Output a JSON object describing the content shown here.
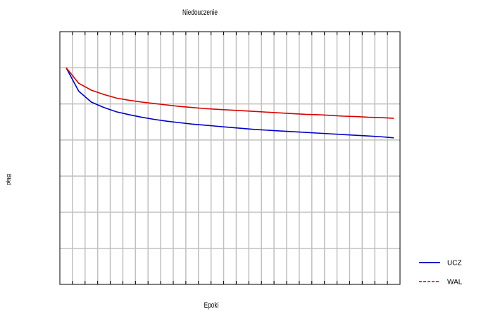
{
  "chart_data": {
    "type": "line",
    "title": "Niedouczenie",
    "x_label": "Epoki",
    "y_label": "Błąd",
    "x": [
      0.5,
      1.5,
      2.5,
      3.5,
      4.5,
      5.5,
      6.5,
      7.5,
      8.5,
      9.5,
      10.5,
      11.5,
      12.5,
      13.5,
      14.5,
      15.5,
      16.5,
      17.5,
      18.5,
      19.5,
      20.5,
      21.5,
      22.5,
      23.5,
      24.5,
      25.5,
      26.5
    ],
    "series": [
      {
        "name": "UCZ",
        "color": "#0000c8",
        "values": [
          6.0,
          5.35,
          5.05,
          4.9,
          4.78,
          4.7,
          4.63,
          4.57,
          4.52,
          4.48,
          4.44,
          4.41,
          4.38,
          4.35,
          4.32,
          4.29,
          4.27,
          4.25,
          4.23,
          4.21,
          4.19,
          4.17,
          4.15,
          4.13,
          4.11,
          4.09,
          4.06
        ]
      },
      {
        "name": "WAL",
        "color": "#d80000",
        "values": [
          6.0,
          5.57,
          5.38,
          5.26,
          5.16,
          5.1,
          5.05,
          5.01,
          4.97,
          4.93,
          4.9,
          4.87,
          4.85,
          4.83,
          4.81,
          4.79,
          4.77,
          4.75,
          4.73,
          4.71,
          4.7,
          4.68,
          4.66,
          4.65,
          4.63,
          4.62,
          4.6
        ]
      }
    ],
    "xlim": [
      0,
      27
    ],
    "ylim": [
      0,
      7
    ],
    "xticks": [
      1,
      2,
      3,
      4,
      5,
      6,
      7,
      8,
      9,
      10,
      11,
      12,
      13,
      14,
      15,
      16,
      17,
      18,
      19,
      20,
      21,
      22,
      23,
      24,
      25,
      26
    ],
    "yticks": [
      1,
      2,
      3,
      4,
      5,
      6
    ],
    "grid": true
  }
}
